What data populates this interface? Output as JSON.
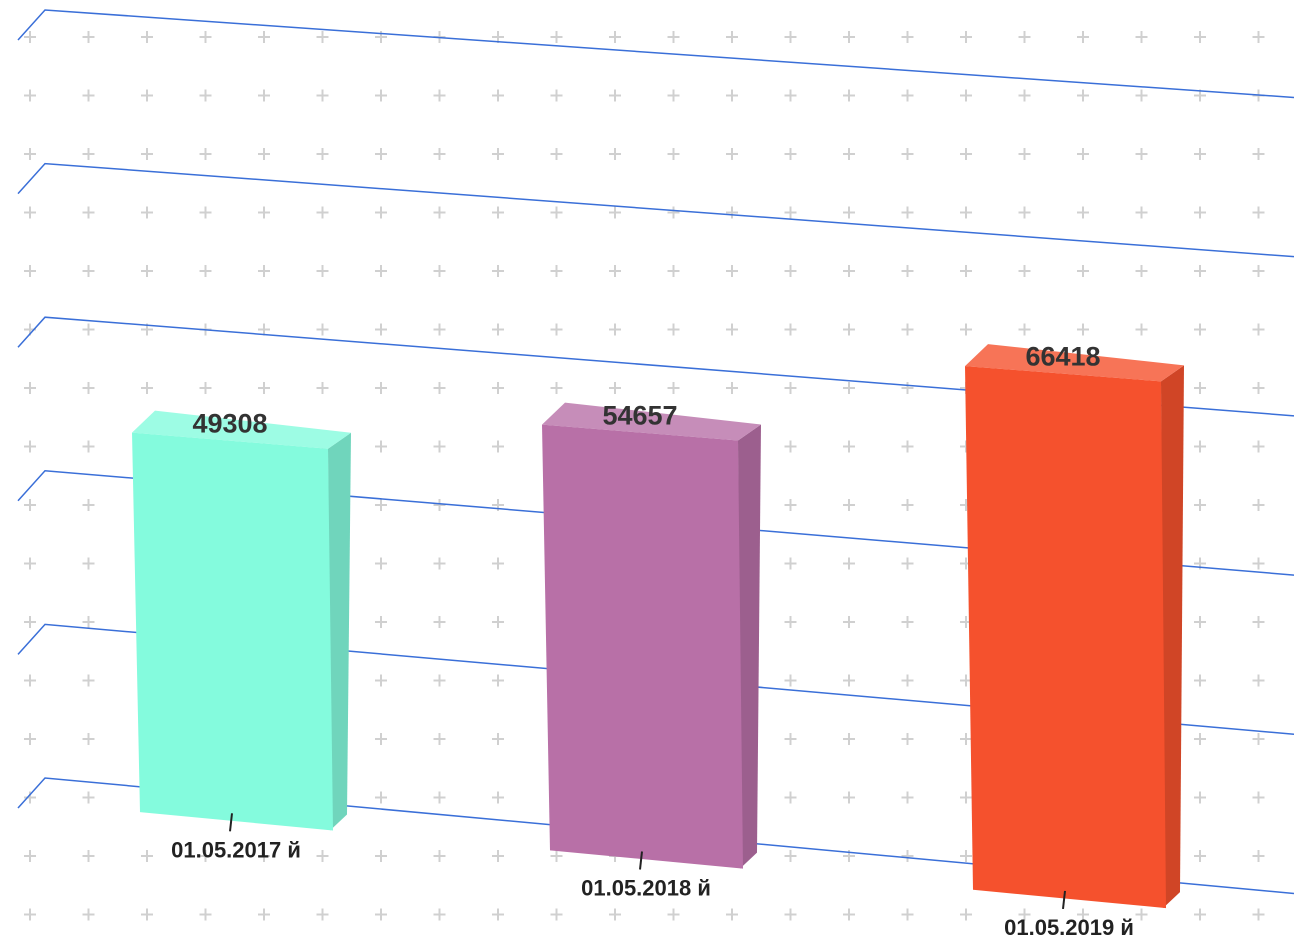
{
  "chart_data": {
    "type": "bar3d",
    "categories": [
      "01.05.2017 й",
      "01.05.2018 й",
      "01.05.2019 й"
    ],
    "values": [
      49308,
      54657,
      66418
    ],
    "colors": [
      "#84fbdd",
      "#b870a7",
      "#f5512d"
    ],
    "ylim": [
      0,
      100000
    ],
    "yticks": [
      0,
      20000,
      40000,
      60000,
      80000,
      100000
    ],
    "grid": true
  }
}
